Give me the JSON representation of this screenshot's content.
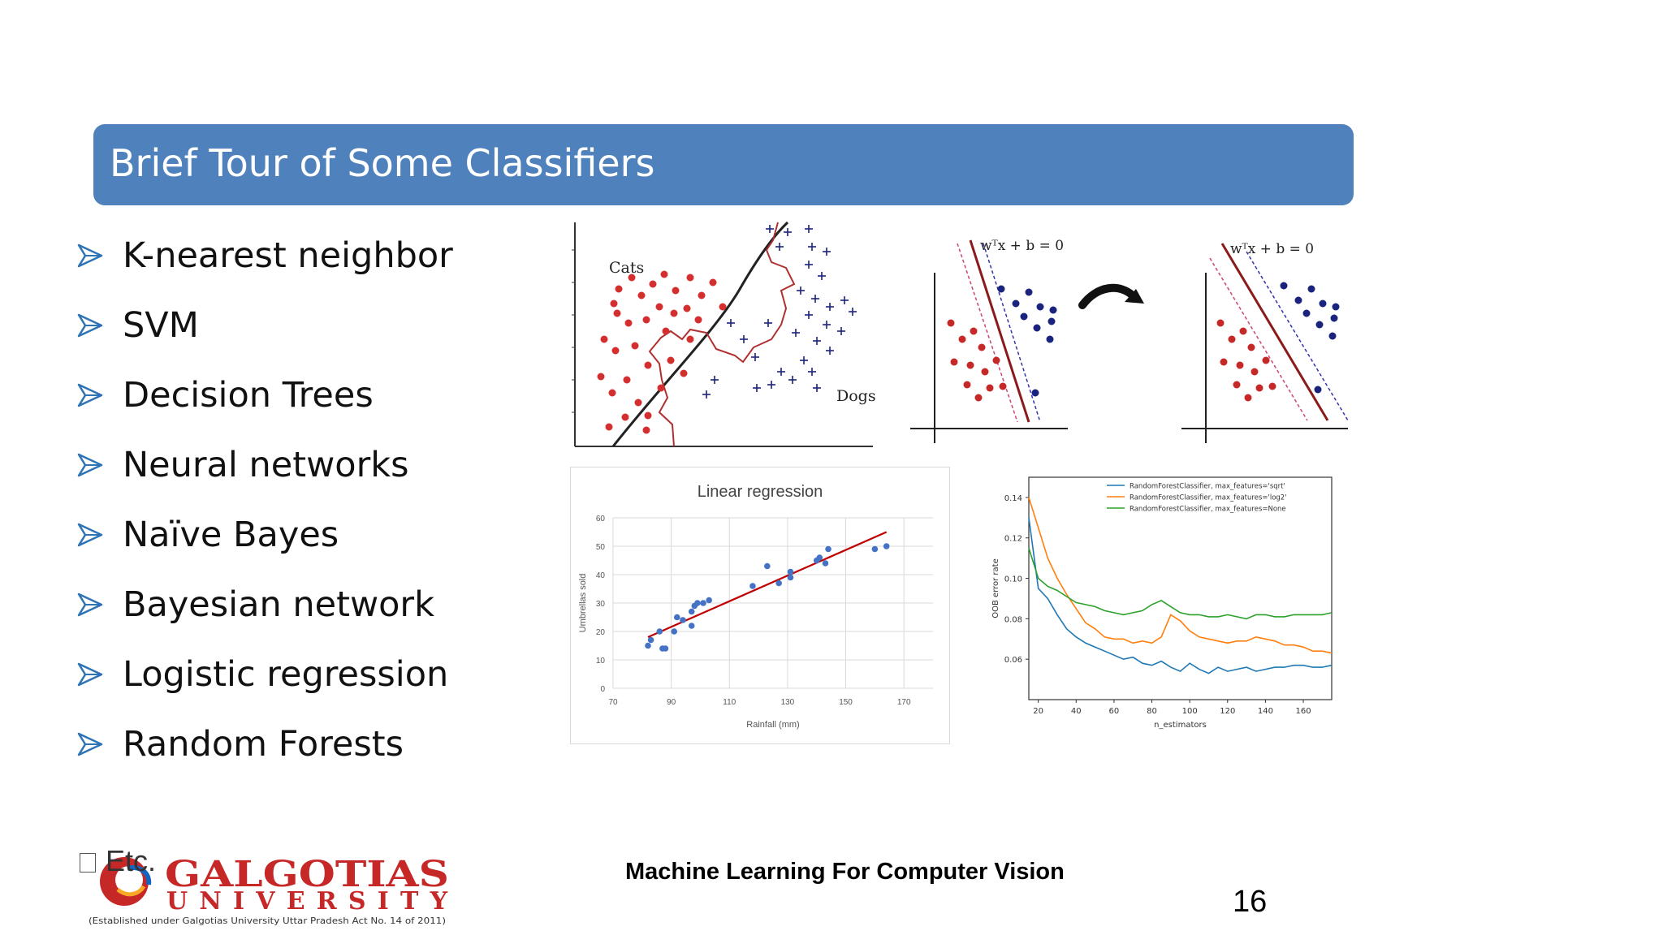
{
  "slide": {
    "title": "Brief Tour of Some Classifiers",
    "bullets": [
      "K-nearest neighbor",
      "SVM",
      "Decision Trees",
      "Neural networks",
      "Naïve Bayes",
      "Bayesian network",
      "Logistic regression",
      "Random Forests"
    ],
    "etc": "Etc.",
    "footer_title": "Machine Learning For Computer Vision",
    "page_number": "16",
    "colors": {
      "title_bar": "#4f81bd",
      "bullet_arrow": "#2e74b5"
    }
  },
  "logo": {
    "name": "GALGOTIAS",
    "sub": "UNIVERSITY",
    "tagline": "(Established under Galgotias University Uttar Pradesh Act No. 14 of 2011)"
  },
  "knn_figure": {
    "label_cats": "Cats",
    "label_dogs": "Dogs"
  },
  "svm_figure": {
    "equation_left": "wᵀx + b = 0",
    "equation_right": "wᵀx + b = 0"
  },
  "chart_data": [
    {
      "type": "scatter",
      "title": "Linear regression",
      "xlabel": "Rainfall (mm)",
      "ylabel": "Umbrellas sold",
      "xlim": [
        70,
        180
      ],
      "ylim": [
        0,
        60
      ],
      "xticks": [
        70,
        90,
        110,
        130,
        150,
        170
      ],
      "yticks": [
        0,
        10,
        20,
        30,
        40,
        50,
        60
      ],
      "grid": true,
      "x": [
        82,
        83,
        86,
        87,
        88,
        91,
        92,
        94,
        97,
        97,
        98,
        99,
        101,
        103,
        118,
        123,
        127,
        131,
        131,
        140,
        141,
        143,
        144,
        160,
        164
      ],
      "y": [
        15,
        17,
        20,
        14,
        14,
        20,
        25,
        24,
        27,
        22,
        29,
        30,
        30,
        31,
        36,
        43,
        37,
        39,
        41,
        45,
        46,
        44,
        49,
        49,
        50
      ],
      "fit_line": {
        "x": [
          82,
          164
        ],
        "y": [
          18,
          55
        ]
      },
      "point_color": "#4472c4",
      "line_color": "#c00000"
    },
    {
      "type": "line",
      "xlabel": "n_estimators",
      "ylabel": "OOB error rate",
      "xlim": [
        15,
        175
      ],
      "ylim": [
        0.04,
        0.15
      ],
      "xticks": [
        20,
        40,
        60,
        80,
        100,
        120,
        140,
        160
      ],
      "yticks": [
        0.06,
        0.08,
        0.1,
        0.12,
        0.14
      ],
      "legend": "top-right",
      "x": [
        15,
        20,
        25,
        30,
        35,
        40,
        45,
        50,
        55,
        60,
        65,
        70,
        75,
        80,
        85,
        90,
        95,
        100,
        105,
        110,
        115,
        120,
        125,
        130,
        135,
        140,
        145,
        150,
        155,
        160,
        165,
        170,
        175
      ],
      "series": [
        {
          "name": "RandomForestClassifier, max_features='sqrt'",
          "color": "#1f77b4",
          "values": [
            0.13,
            0.095,
            0.09,
            0.082,
            0.075,
            0.071,
            0.068,
            0.066,
            0.064,
            0.062,
            0.06,
            0.061,
            0.058,
            0.057,
            0.059,
            0.056,
            0.054,
            0.058,
            0.055,
            0.053,
            0.056,
            0.054,
            0.055,
            0.056,
            0.054,
            0.055,
            0.056,
            0.056,
            0.057,
            0.057,
            0.056,
            0.056,
            0.057
          ]
        },
        {
          "name": "RandomForestClassifier, max_features='log2'",
          "color": "#ff7f0e",
          "values": [
            0.14,
            0.125,
            0.11,
            0.1,
            0.092,
            0.085,
            0.078,
            0.075,
            0.071,
            0.07,
            0.07,
            0.068,
            0.069,
            0.068,
            0.071,
            0.082,
            0.079,
            0.074,
            0.071,
            0.07,
            0.069,
            0.068,
            0.069,
            0.069,
            0.071,
            0.07,
            0.069,
            0.067,
            0.067,
            0.066,
            0.064,
            0.064,
            0.063
          ]
        },
        {
          "name": "RandomForestClassifier, max_features=None",
          "color": "#2ca02c",
          "values": [
            0.115,
            0.1,
            0.096,
            0.094,
            0.091,
            0.088,
            0.087,
            0.086,
            0.084,
            0.083,
            0.082,
            0.083,
            0.084,
            0.087,
            0.089,
            0.086,
            0.083,
            0.082,
            0.082,
            0.081,
            0.081,
            0.082,
            0.081,
            0.08,
            0.082,
            0.082,
            0.081,
            0.081,
            0.082,
            0.082,
            0.082,
            0.082,
            0.083
          ]
        }
      ]
    }
  ]
}
